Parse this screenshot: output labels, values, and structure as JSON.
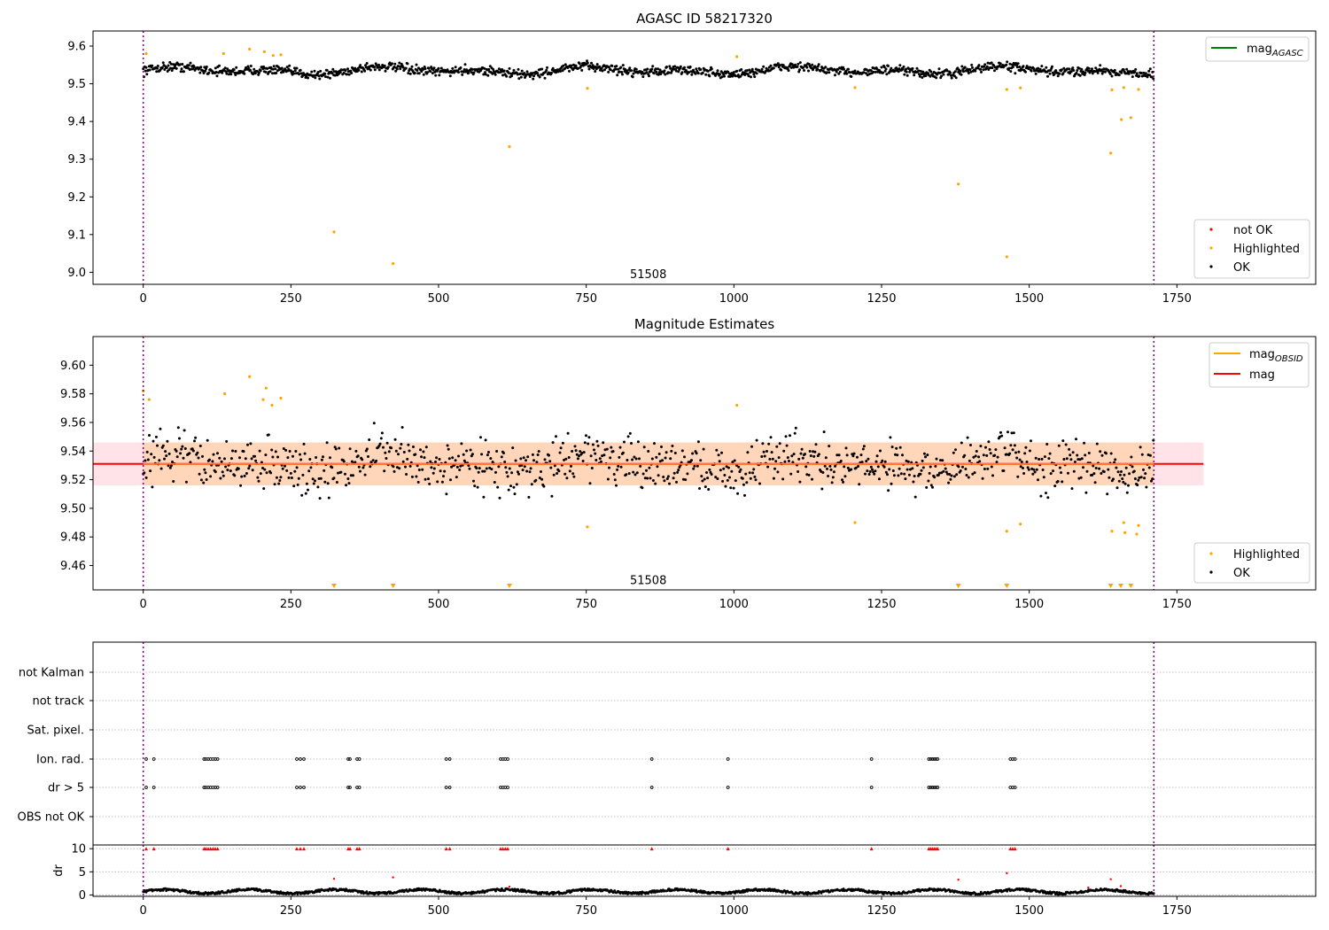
{
  "chart_data": [
    {
      "id": "mag_agasc",
      "type": "scatter",
      "title": "AGASC ID 58217320",
      "xlim": [
        -85,
        1985
      ],
      "ylim": [
        8.968,
        9.64
      ],
      "xticks": [
        0,
        250,
        500,
        750,
        1000,
        1250,
        1500,
        1750
      ],
      "yticks": [
        9.0,
        9.1,
        9.2,
        9.3,
        9.4,
        9.5,
        9.6
      ],
      "ytick_labels": [
        "9.0",
        "9.1",
        "9.2",
        "9.3",
        "9.4",
        "9.5",
        "9.6"
      ],
      "obs_boundaries": [
        0,
        1711
      ],
      "obs_label": {
        "text": "51508",
        "x": 855,
        "y": 8.985
      },
      "ok_band": {
        "x_start": 0,
        "x_end": 1711,
        "center": 9.535,
        "amplitude": 0.012,
        "noise": 0.018,
        "step": 1.25
      },
      "highlighted_points": [
        {
          "x": 5,
          "y": 9.58
        },
        {
          "x": 136,
          "y": 9.58
        },
        {
          "x": 180,
          "y": 9.592
        },
        {
          "x": 205,
          "y": 9.585
        },
        {
          "x": 220,
          "y": 9.575
        },
        {
          "x": 233,
          "y": 9.577
        },
        {
          "x": 323,
          "y": 9.107
        },
        {
          "x": 423,
          "y": 9.023
        },
        {
          "x": 620,
          "y": 9.333
        },
        {
          "x": 752,
          "y": 9.488
        },
        {
          "x": 1005,
          "y": 9.572
        },
        {
          "x": 1205,
          "y": 9.49
        },
        {
          "x": 1380,
          "y": 9.234
        },
        {
          "x": 1462,
          "y": 9.485
        },
        {
          "x": 1462,
          "y": 9.041
        },
        {
          "x": 1485,
          "y": 9.489
        },
        {
          "x": 1638,
          "y": 9.316
        },
        {
          "x": 1640,
          "y": 9.484
        },
        {
          "x": 1656,
          "y": 9.405
        },
        {
          "x": 1660,
          "y": 9.49
        },
        {
          "x": 1672,
          "y": 9.41
        },
        {
          "x": 1685,
          "y": 9.485
        }
      ],
      "legends": [
        {
          "position": "upper-right",
          "entries": [
            {
              "label": "mag",
              "sub": "AGASC",
              "marker": "line",
              "color": "#008000"
            }
          ]
        },
        {
          "position": "lower-right",
          "entries": [
            {
              "label": "not OK",
              "marker": "dot",
              "color": "#ff0000"
            },
            {
              "label": "Highlighted",
              "marker": "dot",
              "color": "#ffa500"
            },
            {
              "label": "OK",
              "marker": "dot",
              "color": "#000000"
            }
          ]
        }
      ]
    },
    {
      "id": "mag_estimates",
      "type": "scatter",
      "title": "Magnitude Estimates",
      "xlim": [
        -85,
        1985
      ],
      "ylim": [
        9.443,
        9.62
      ],
      "xticks": [
        0,
        250,
        500,
        750,
        1000,
        1250,
        1500,
        1750
      ],
      "yticks": [
        9.46,
        9.48,
        9.5,
        9.52,
        9.54,
        9.56,
        9.58,
        9.6
      ],
      "ytick_labels": [
        "9.46",
        "9.48",
        "9.50",
        "9.52",
        "9.54",
        "9.56",
        "9.58",
        "9.60"
      ],
      "obs_boundaries": [
        0,
        1711
      ],
      "obs_label": {
        "text": "51508",
        "x": 855,
        "y": 9.447
      },
      "mag_line": {
        "y": 9.531,
        "x_start": -85,
        "x_end": 1795,
        "color": "#ff0000"
      },
      "mag_band": {
        "y_low": 9.516,
        "y_high": 9.546,
        "x_start": -85,
        "x_end": 1795,
        "color": "#ffc0cb"
      },
      "mag_obsid_band": {
        "y_low": 9.516,
        "y_high": 9.546,
        "x_start": 0,
        "x_end": 1711,
        "color": "#ffa500"
      },
      "ok_band": {
        "x_start": 0,
        "x_end": 1711,
        "center": 9.531,
        "amplitude": 0.008,
        "noise": 0.025,
        "step": 1.7
      },
      "highlighted_points": [
        {
          "x": 0,
          "y": 9.582
        },
        {
          "x": 10,
          "y": 9.576
        },
        {
          "x": 138,
          "y": 9.58
        },
        {
          "x": 180,
          "y": 9.592
        },
        {
          "x": 203,
          "y": 9.576
        },
        {
          "x": 208,
          "y": 9.584
        },
        {
          "x": 218,
          "y": 9.572
        },
        {
          "x": 233,
          "y": 9.577
        },
        {
          "x": 752,
          "y": 9.487
        },
        {
          "x": 1005,
          "y": 9.572
        },
        {
          "x": 1205,
          "y": 9.49
        },
        {
          "x": 1462,
          "y": 9.484
        },
        {
          "x": 1485,
          "y": 9.489
        },
        {
          "x": 1640,
          "y": 9.484
        },
        {
          "x": 1660,
          "y": 9.49
        },
        {
          "x": 1662,
          "y": 9.483
        },
        {
          "x": 1682,
          "y": 9.482
        },
        {
          "x": 1685,
          "y": 9.488
        }
      ],
      "off_scale_markers_x": [
        323,
        423,
        620,
        1380,
        1462,
        1638,
        1655,
        1672
      ],
      "legends": [
        {
          "position": "upper-right",
          "entries": [
            {
              "label": "mag",
              "sub": "OBSID",
              "marker": "line",
              "color": "#ffa500"
            },
            {
              "label": "mag",
              "marker": "line",
              "color": "#ff0000"
            }
          ]
        },
        {
          "position": "lower-right",
          "entries": [
            {
              "label": "Highlighted",
              "marker": "dot",
              "color": "#ffa500"
            },
            {
              "label": "OK",
              "marker": "dot",
              "color": "#000000"
            }
          ]
        }
      ]
    },
    {
      "id": "flags",
      "type": "scatter",
      "xlim": [
        -85,
        1985
      ],
      "categories": [
        "not Kalman",
        "not track",
        "Sat. pixel.",
        "Ion. rad.",
        "dr > 5",
        "OBS not OK"
      ],
      "obs_boundaries": [
        0,
        1711
      ],
      "flag_events": [
        {
          "category": "Ion. rad.",
          "x": [
            5,
            18,
            103,
            106,
            110,
            114,
            118,
            122,
            126,
            260,
            266,
            272,
            347,
            350,
            362,
            366,
            513,
            519,
            605,
            609,
            613,
            617,
            861,
            990,
            1233,
            1330,
            1333,
            1336,
            1339,
            1342,
            1345,
            1468,
            1472,
            1476
          ]
        },
        {
          "category": "dr > 5",
          "x": [
            5,
            18,
            103,
            106,
            110,
            114,
            118,
            122,
            126,
            260,
            266,
            272,
            347,
            350,
            362,
            366,
            513,
            519,
            605,
            609,
            613,
            617,
            861,
            990,
            1233,
            1330,
            1333,
            1336,
            1339,
            1342,
            1345,
            1468,
            1472,
            1476
          ]
        }
      ]
    },
    {
      "id": "dr",
      "type": "scatter",
      "ylabel": "dr",
      "xlim": [
        -85,
        1985
      ],
      "xticks": [
        0,
        250,
        500,
        750,
        1000,
        1250,
        1500,
        1750
      ],
      "ylim": [
        -0.3,
        10.8
      ],
      "yticks": [
        0,
        5,
        10
      ],
      "ytick_labels": [
        "0",
        "5",
        "10"
      ],
      "obs_boundaries": [
        0,
        1711
      ],
      "clipped_value": 10,
      "dr_band": {
        "x_start": 0,
        "x_end": 1711,
        "center": 0.75,
        "amplitude": 0.4,
        "step": 1.3
      },
      "clipped_x": [
        5,
        18,
        103,
        106,
        110,
        114,
        118,
        122,
        126,
        260,
        266,
        272,
        347,
        350,
        362,
        366,
        513,
        519,
        605,
        609,
        613,
        617,
        861,
        990,
        1233,
        1330,
        1333,
        1336,
        1339,
        1342,
        1345,
        1468,
        1472,
        1476
      ],
      "outlier_points": [
        {
          "x": 323,
          "y": 3.5
        },
        {
          "x": 423,
          "y": 3.8
        },
        {
          "x": 620,
          "y": 1.8
        },
        {
          "x": 1380,
          "y": 3.3
        },
        {
          "x": 1462,
          "y": 4.7
        },
        {
          "x": 1600,
          "y": 1.6
        },
        {
          "x": 1638,
          "y": 3.4
        },
        {
          "x": 1655,
          "y": 1.9
        }
      ]
    }
  ]
}
